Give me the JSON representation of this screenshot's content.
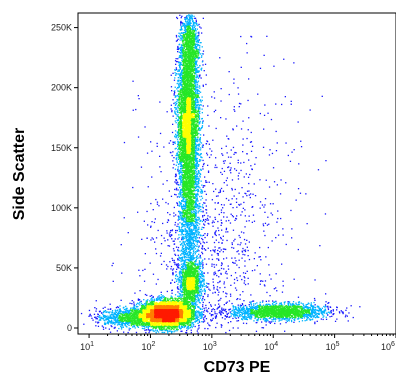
{
  "chart_data": {
    "type": "scatter",
    "plot_style": "flow-cytometry density dot plot",
    "title": "",
    "xlabel": "CD73 PE",
    "ylabel": "Side Scatter",
    "x_scale": "log",
    "xlim": [
      6.6,
      1000000
    ],
    "ylim": [
      -5000,
      262144
    ],
    "x_ticks": [
      {
        "base": "10",
        "exp": "1",
        "value": 10
      },
      {
        "base": "10",
        "exp": "2",
        "value": 100
      },
      {
        "base": "10",
        "exp": "3",
        "value": 1000
      },
      {
        "base": "10",
        "exp": "4",
        "value": 10000
      },
      {
        "base": "10",
        "exp": "5",
        "value": 100000
      },
      {
        "base": "10",
        "exp": "6",
        "value": 1000000
      }
    ],
    "y_ticks": [
      {
        "label": "0",
        "value": 0
      },
      {
        "label": "50K",
        "value": 50000
      },
      {
        "label": "100K",
        "value": 100000
      },
      {
        "label": "150K",
        "value": 150000
      },
      {
        "label": "200K",
        "value": 200000
      },
      {
        "label": "250K",
        "value": 250000
      }
    ],
    "populations": [
      {
        "x_center": 180,
        "x_log_spread": 0.22,
        "y_center": 12000,
        "y_spread": 5500,
        "weight": 0.3
      },
      {
        "x_center": 400,
        "x_log_spread": 0.09,
        "y_center": 175000,
        "y_spread": 30000,
        "weight": 0.22
      },
      {
        "x_center": 420,
        "x_log_spread": 0.08,
        "y_center": 235000,
        "y_spread": 15000,
        "weight": 0.06
      },
      {
        "x_center": 420,
        "x_log_spread": 0.09,
        "y_center": 100000,
        "y_spread": 38000,
        "weight": 0.12
      },
      {
        "x_center": 450,
        "x_log_spread": 0.1,
        "y_center": 38000,
        "y_spread": 9000,
        "weight": 0.07
      },
      {
        "x_center": 12000,
        "x_log_spread": 0.4,
        "y_center": 14000,
        "y_spread": 3500,
        "weight": 0.11
      },
      {
        "x_center": 40,
        "x_log_spread": 0.25,
        "y_center": 9000,
        "y_spread": 4000,
        "weight": 0.05
      },
      {
        "x_center": 800,
        "x_log_spread": 0.55,
        "y_center": 60000,
        "y_spread": 45000,
        "weight": 0.04
      },
      {
        "x_center": 1500,
        "x_log_spread": 0.65,
        "y_center": 110000,
        "y_spread": 60000,
        "weight": 0.03
      }
    ],
    "density_colors": [
      "#1a1aff",
      "#00b3ff",
      "#26e626",
      "#ffff00",
      "#ff7f00",
      "#ff1a00"
    ],
    "grid": false,
    "legend": "none"
  }
}
